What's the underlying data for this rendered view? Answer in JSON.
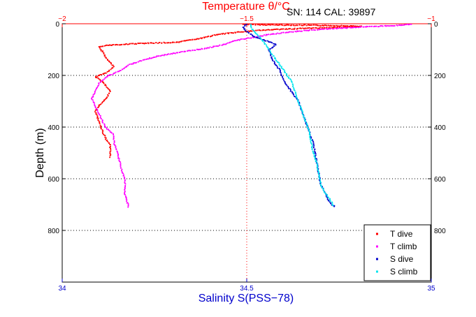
{
  "chart_data": {
    "type": "scatter",
    "serial_label": "SN: 114  CAL: 39897",
    "top_axis": {
      "label": "Temperature θ/°C",
      "range": [
        -2,
        -1
      ],
      "ticks": [
        -2,
        -1.5,
        -1
      ],
      "tick_labels": [
        "−2",
        "−1.5",
        "−1"
      ],
      "color": "#ff0000"
    },
    "bottom_axis": {
      "label": "Salinity S(PSS−78)",
      "range": [
        34,
        35
      ],
      "ticks": [
        34,
        34.5,
        35
      ],
      "tick_labels": [
        "34",
        "34.5",
        "35"
      ],
      "color": "#0000cc"
    },
    "y_axis": {
      "label": "Depth (m)",
      "range": [
        0,
        1000
      ],
      "reversed": true,
      "ticks": [
        0,
        200,
        400,
        600,
        800
      ],
      "tick_labels": [
        "0",
        "200",
        "400",
        "600",
        "800"
      ]
    },
    "grid": "dotted",
    "legend_position": "bottom-right",
    "series": [
      {
        "name": "T dive",
        "axis": "temperature",
        "color": "#ff0000",
        "points": [
          [
            -1.51,
            2
          ],
          [
            -1.46,
            4
          ],
          [
            -1.4,
            5
          ],
          [
            -1.32,
            6
          ],
          [
            -1.24,
            8
          ],
          [
            -1.19,
            10
          ],
          [
            -1.22,
            13
          ],
          [
            -1.3,
            16
          ],
          [
            -1.36,
            19
          ],
          [
            -1.42,
            22
          ],
          [
            -1.47,
            26
          ],
          [
            -1.52,
            32
          ],
          [
            -1.58,
            42
          ],
          [
            -1.62,
            55
          ],
          [
            -1.66,
            65
          ],
          [
            -1.69,
            72
          ],
          [
            -1.78,
            76
          ],
          [
            -1.84,
            80
          ],
          [
            -1.88,
            84
          ],
          [
            -1.9,
            90
          ],
          [
            -1.89,
            110
          ],
          [
            -1.88,
            135
          ],
          [
            -1.86,
            165
          ],
          [
            -1.88,
            190
          ],
          [
            -1.91,
            205
          ],
          [
            -1.89,
            225
          ],
          [
            -1.87,
            260
          ],
          [
            -1.88,
            290
          ],
          [
            -1.9,
            315
          ],
          [
            -1.91,
            340
          ],
          [
            -1.9,
            380
          ],
          [
            -1.89,
            420
          ],
          [
            -1.88,
            450
          ],
          [
            -1.87,
            470
          ],
          [
            -1.87,
            500
          ],
          [
            -1.87,
            520
          ]
        ]
      },
      {
        "name": "T climb",
        "axis": "temperature",
        "color": "#ff00ff",
        "points": [
          [
            -1.82,
            710
          ],
          [
            -1.83,
            660
          ],
          [
            -1.83,
            600
          ],
          [
            -1.84,
            560
          ],
          [
            -1.85,
            500
          ],
          [
            -1.86,
            460
          ],
          [
            -1.86,
            430
          ],
          [
            -1.88,
            405
          ],
          [
            -1.89,
            380
          ],
          [
            -1.9,
            350
          ],
          [
            -1.91,
            320
          ],
          [
            -1.92,
            290
          ],
          [
            -1.91,
            260
          ],
          [
            -1.9,
            230
          ],
          [
            -1.88,
            205
          ],
          [
            -1.84,
            180
          ],
          [
            -1.82,
            160
          ],
          [
            -1.79,
            145
          ],
          [
            -1.74,
            125
          ],
          [
            -1.68,
            110
          ],
          [
            -1.61,
            95
          ],
          [
            -1.56,
            80
          ],
          [
            -1.53,
            65
          ],
          [
            -1.49,
            55
          ],
          [
            -1.44,
            42
          ],
          [
            -1.37,
            30
          ],
          [
            -1.28,
            20
          ],
          [
            -1.18,
            12
          ],
          [
            -1.08,
            6
          ],
          [
            -1.05,
            1
          ]
        ]
      },
      {
        "name": "S dive",
        "axis": "salinity",
        "color": "#0000cc",
        "points": [
          [
            34.5,
            0
          ],
          [
            34.49,
            15
          ],
          [
            34.5,
            30
          ],
          [
            34.52,
            50
          ],
          [
            34.55,
            65
          ],
          [
            34.58,
            80
          ],
          [
            34.56,
            100
          ],
          [
            34.57,
            140
          ],
          [
            34.59,
            180
          ],
          [
            34.6,
            220
          ],
          [
            34.62,
            260
          ],
          [
            34.64,
            300
          ],
          [
            34.65,
            340
          ],
          [
            34.66,
            380
          ],
          [
            34.67,
            420
          ],
          [
            34.68,
            460
          ],
          [
            34.685,
            500
          ],
          [
            34.69,
            540
          ],
          [
            34.695,
            580
          ],
          [
            34.7,
            620
          ],
          [
            34.71,
            650
          ],
          [
            34.72,
            680
          ],
          [
            34.73,
            700
          ],
          [
            34.74,
            710
          ]
        ]
      },
      {
        "name": "S climb",
        "axis": "salinity",
        "color": "#00e5ee",
        "points": [
          [
            34.735,
            705
          ],
          [
            34.73,
            690
          ],
          [
            34.72,
            670
          ],
          [
            34.71,
            650
          ],
          [
            34.7,
            620
          ],
          [
            34.695,
            580
          ],
          [
            34.69,
            540
          ],
          [
            34.68,
            500
          ],
          [
            34.675,
            460
          ],
          [
            34.67,
            420
          ],
          [
            34.66,
            380
          ],
          [
            34.65,
            340
          ],
          [
            34.64,
            300
          ],
          [
            34.63,
            260
          ],
          [
            34.62,
            220
          ],
          [
            34.6,
            180
          ],
          [
            34.58,
            140
          ],
          [
            34.56,
            100
          ],
          [
            34.54,
            60
          ],
          [
            34.52,
            30
          ],
          [
            34.51,
            10
          ],
          [
            34.51,
            0
          ]
        ]
      }
    ]
  }
}
